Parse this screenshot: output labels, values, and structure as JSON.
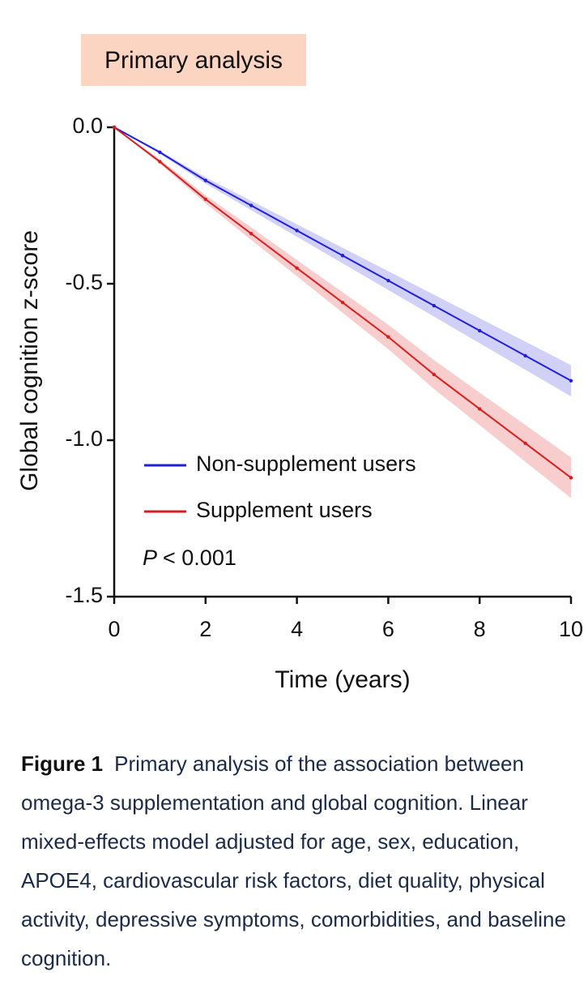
{
  "chart_data": {
    "type": "line",
    "title": "Primary analysis",
    "x_label": "Time (years)",
    "y_label": "Global cognition z-score",
    "x": [
      0,
      1,
      2,
      3,
      4,
      5,
      6,
      7,
      8,
      9,
      10
    ],
    "series": [
      {
        "name": "Non-supplement users",
        "color": "#1f1fe0",
        "band_color": "#c9c9f7",
        "values": [
          0,
          -0.08,
          -0.17,
          -0.25,
          -0.33,
          -0.41,
          -0.49,
          -0.57,
          -0.65,
          -0.73,
          -0.81
        ],
        "lower": [
          0,
          -0.085,
          -0.18,
          -0.265,
          -0.35,
          -0.435,
          -0.52,
          -0.605,
          -0.69,
          -0.775,
          -0.86
        ],
        "upper": [
          0,
          -0.075,
          -0.16,
          -0.235,
          -0.31,
          -0.385,
          -0.46,
          -0.535,
          -0.61,
          -0.685,
          -0.76
        ]
      },
      {
        "name": "Supplement users",
        "color": "#d81e1e",
        "band_color": "#f7c4c4",
        "values": [
          0,
          -0.11,
          -0.23,
          -0.34,
          -0.45,
          -0.56,
          -0.67,
          -0.79,
          -0.9,
          -1.01,
          -1.12
        ],
        "lower": [
          0,
          -0.117,
          -0.243,
          -0.36,
          -0.476,
          -0.593,
          -0.709,
          -0.836,
          -0.952,
          -1.069,
          -1.185
        ],
        "upper": [
          0,
          -0.103,
          -0.217,
          -0.32,
          -0.424,
          -0.527,
          -0.631,
          -0.744,
          -0.848,
          -0.951,
          -1.055
        ]
      }
    ],
    "xlim": [
      0,
      10
    ],
    "xticks": [
      0,
      2,
      4,
      6,
      8,
      10
    ],
    "ylim": [
      -1.5,
      0
    ],
    "yticks": [
      {
        "value": 0,
        "label": "0.0"
      },
      -0.5,
      {
        "value": -1,
        "label": "-1.0"
      },
      -1.5
    ],
    "grid": false,
    "legend": "lower left",
    "annotation_italic": "P",
    "annotation": "< 0.001"
  },
  "caption": {
    "label": "Figure 1",
    "text": "Primary analysis of the association between omega-3 supplementation and global cognition. Linear mixed-effects model adjusted for age, sex, education, APOE4, cardiovascular risk factors, diet quality, physical activity, depressive symptoms, comorbidities, and baseline cognition."
  }
}
